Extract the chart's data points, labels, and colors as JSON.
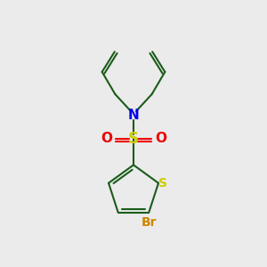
{
  "bg_color": "#ebebeb",
  "bond_color": "#1a5c1a",
  "N_color": "#0000ee",
  "S_sulfonyl_color": "#cccc00",
  "O_color": "#ee0000",
  "S_thiophene_color": "#cccc00",
  "Br_color": "#cc8800",
  "line_width": 1.5,
  "figsize": [
    3.0,
    3.0
  ],
  "dpi": 100,
  "xlim": [
    0,
    10
  ],
  "ylim": [
    0,
    10
  ]
}
